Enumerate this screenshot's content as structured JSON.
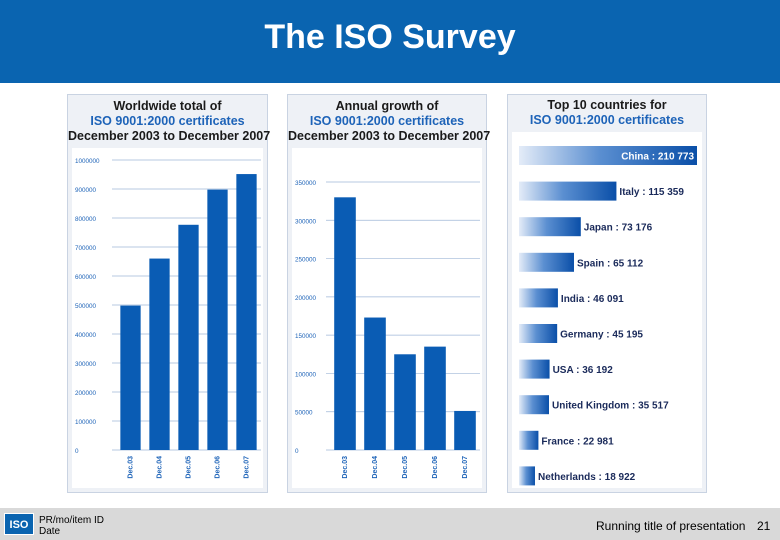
{
  "title": "The ISO Survey",
  "colors": {
    "brand": "#0a64b0",
    "bar": "#0a5cb4",
    "header_black": "#1a1a1a",
    "header_blue": "#1d63b8"
  },
  "footer": {
    "logo_text": "ISO",
    "id_line1": "PR/mo/item ID",
    "id_line2": "Date",
    "running_title": "Running title of presentation",
    "page_number": "21"
  },
  "chart_data": [
    {
      "type": "bar",
      "title": [
        "Worldwide total of",
        "ISO 9001:2000 certificates",
        "December 2003 to December 2007"
      ],
      "categories": [
        "Dec.03",
        "Dec.04",
        "Dec.05",
        "Dec.06",
        "Dec.07"
      ],
      "values": [
        497919,
        660132,
        776608,
        897866,
        951486
      ],
      "ylim": [
        0,
        1000000
      ],
      "yticks": [
        "0",
        "100000",
        "200000",
        "300000",
        "400000",
        "500000",
        "600000",
        "700000",
        "800000",
        "900000",
        "1000000"
      ],
      "grid": true
    },
    {
      "type": "bar",
      "title": [
        "Annual growth of",
        "ISO 9001:2000 certificates",
        "December 2003 to December 2007"
      ],
      "categories": [
        "Dec.03",
        "Dec.04",
        "Dec.05",
        "Dec.06",
        "Dec.07"
      ],
      "values": [
        330000,
        173000,
        125000,
        135000,
        51000
      ],
      "ylim": [
        0,
        350000
      ],
      "yticks": [
        "0",
        "50000",
        "100000",
        "150000",
        "200000",
        "250000",
        "300000",
        "350000"
      ],
      "grid": true
    },
    {
      "type": "bar",
      "orientation": "horizontal",
      "title": [
        "Top 10 countries for",
        "ISO 9001:2000 certificates"
      ],
      "categories": [
        "China",
        "Italy",
        "Japan",
        "Spain",
        "India",
        "Germany",
        "USA",
        "United Kingdom",
        "France",
        "Netherlands"
      ],
      "values": [
        210773,
        115359,
        73176,
        65112,
        46091,
        45195,
        36192,
        35517,
        22981,
        18922
      ],
      "labels": [
        "China : 210 773",
        "Italy : 115 359",
        "Japan : 73 176",
        "Spain : 65 112",
        "India : 46 091",
        "Germany : 45 195",
        "USA : 36 192",
        "United Kingdom : 35 517",
        "France : 22 981",
        "Netherlands : 18 922"
      ]
    }
  ]
}
